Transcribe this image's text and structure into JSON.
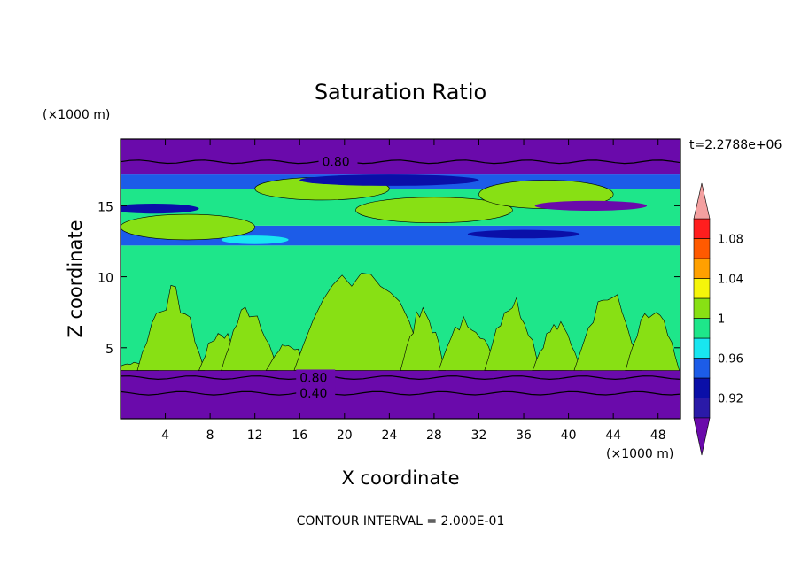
{
  "chart_data": {
    "type": "heatmap",
    "title": "Saturation Ratio",
    "xlabel": "X coordinate",
    "ylabel": "Z coordinate",
    "x_unit": "(×1000 m)",
    "y_unit": "(×1000 m)",
    "time_label": "t=2.2788e+06",
    "footer": "CONTOUR INTERVAL = 2.000E-01",
    "xlim": [
      0,
      50
    ],
    "ylim": [
      0,
      19.7
    ],
    "x_ticks": [
      "4",
      "8",
      "12",
      "16",
      "20",
      "24",
      "28",
      "32",
      "36",
      "40",
      "44",
      "48"
    ],
    "x_tick_values": [
      4,
      8,
      12,
      16,
      20,
      24,
      28,
      32,
      36,
      40,
      44,
      48
    ],
    "y_ticks": [
      "5",
      "10",
      "15"
    ],
    "y_tick_values": [
      5,
      10,
      15
    ],
    "contour_lines": [
      {
        "label": "0.80",
        "z": 18.1
      },
      {
        "label": "0.80",
        "z": 2.9
      },
      {
        "label": "0.40",
        "z": 1.8
      }
    ],
    "colorbar": {
      "labels": [
        "1.08",
        "1.04",
        "1",
        "0.96",
        "0.92"
      ],
      "label_values": [
        1.08,
        1.04,
        1.0,
        0.96,
        0.92
      ],
      "levels": [
        0.9,
        0.92,
        0.94,
        0.96,
        0.98,
        1.0,
        1.02,
        1.04,
        1.06,
        1.08,
        1.1
      ],
      "colors": [
        "#6a0aab",
        "#2a1aa8",
        "#0a0fa8",
        "#1c5ce8",
        "#18e6f0",
        "#1ee68a",
        "#88e014",
        "#f5f50a",
        "#ffa000",
        "#ff5a00",
        "#ff1e1e",
        "#f4a0a0"
      ],
      "extend": "both"
    },
    "bands": [
      {
        "z0": 0.0,
        "z1": 3.4,
        "color": "#6a0aab"
      },
      {
        "z0": 3.4,
        "z1": 12.2,
        "color": "#1ee68a"
      },
      {
        "z0": 12.2,
        "z1": 13.6,
        "color": "#1c5ce8"
      },
      {
        "z0": 13.6,
        "z1": 16.2,
        "color": "#1ee68a"
      },
      {
        "z0": 16.2,
        "z1": 17.2,
        "color": "#1c5ce8"
      },
      {
        "z0": 17.2,
        "z1": 19.7,
        "color": "#6a0aab"
      }
    ]
  }
}
